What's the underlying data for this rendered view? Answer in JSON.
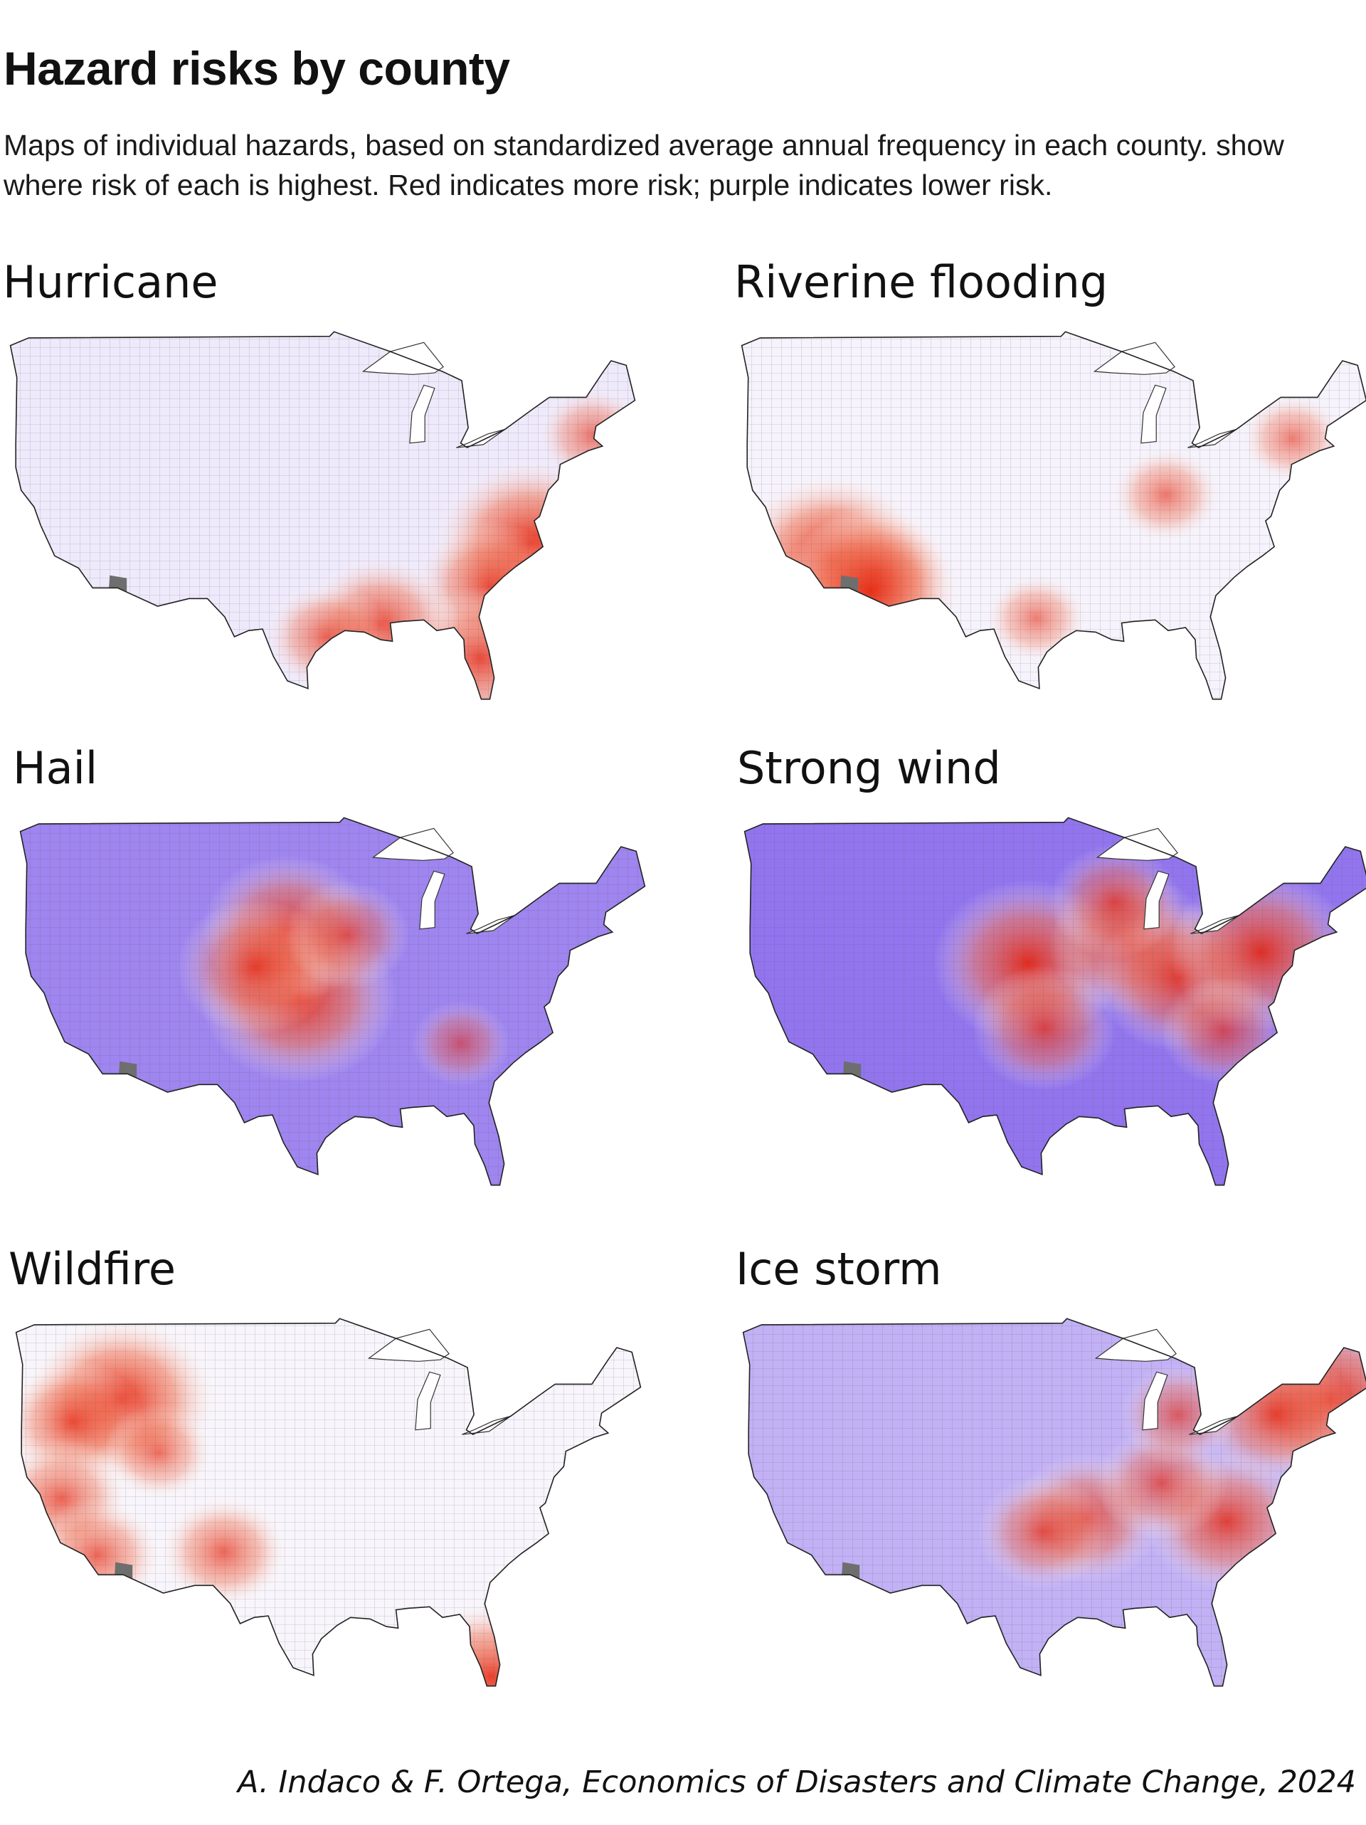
{
  "title": "Hazard risks by county",
  "subtitle": "Maps of individual hazards, based on standardized average annual frequency in each county. show where risk of each is highest. Red indicates more risk; purple indicates lower risk.",
  "credit": "A. Indaco & F. Ortega, Economics of Disasters and Climate Change, 2024",
  "legend": {
    "high_risk_color": "#e8260f",
    "low_risk_color": "#9b7cf0",
    "no_data_color": "#6e6e6e"
  },
  "panels": [
    {
      "label": "Hurricane",
      "base": "#efeafb",
      "hotspots": [
        {
          "region": "North Carolina coast",
          "lon": -76.6,
          "lat": 35.4,
          "intensity": 1.0
        },
        {
          "region": "Southeast Atlantic coast",
          "lon": -80.4,
          "lat": 32.6,
          "intensity": 0.65
        },
        {
          "region": "Florida peninsula",
          "lon": -81.3,
          "lat": 27.9,
          "intensity": 0.75
        },
        {
          "region": "Gulf coast Louisiana",
          "lon": -90.5,
          "lat": 30.1,
          "intensity": 0.7
        },
        {
          "region": "Gulf coast Texas",
          "lon": -95.5,
          "lat": 29.3,
          "intensity": 0.45
        },
        {
          "region": "New England coast",
          "lon": -70.9,
          "lat": 42.5,
          "intensity": 0.35
        }
      ]
    },
    {
      "label": "Riverine flooding",
      "base": "#f6f3fc",
      "hotspots": [
        {
          "region": "Southern California",
          "lon": -116.5,
          "lat": 34.5,
          "intensity": 1.0
        },
        {
          "region": "Arizona",
          "lon": -112.5,
          "lat": 33.5,
          "intensity": 0.7
        },
        {
          "region": "Southern Arizona border",
          "lon": -112.8,
          "lat": 32.3,
          "intensity": 0.9
        },
        {
          "region": "Ohio River valley",
          "lon": -85.5,
          "lat": 38.6,
          "intensity": 0.35
        },
        {
          "region": "Central Texas",
          "lon": -97.5,
          "lat": 30.5,
          "intensity": 0.3
        },
        {
          "region": "Northeast",
          "lon": -73.8,
          "lat": 42.3,
          "intensity": 0.3
        }
      ]
    },
    {
      "label": "Hail",
      "base": "#9f85ef",
      "hotspots": [
        {
          "region": "Kansas / Oklahoma",
          "lon": -99.0,
          "lat": 37.5,
          "intensity": 1.0
        },
        {
          "region": "Nebraska / South Dakota",
          "lon": -100.0,
          "lat": 42.0,
          "intensity": 0.8
        },
        {
          "region": "Eastern Colorado",
          "lon": -103.0,
          "lat": 39.5,
          "intensity": 0.7
        },
        {
          "region": "Iowa",
          "lon": -94.5,
          "lat": 41.6,
          "intensity": 0.45
        },
        {
          "region": "Southeast",
          "lon": -84.0,
          "lat": 34.5,
          "intensity": 0.25
        }
      ]
    },
    {
      "label": "Strong wind",
      "base": "#9275ee",
      "hotspots": [
        {
          "region": "Kansas / Nebraska",
          "lon": -98.5,
          "lat": 39.8,
          "intensity": 0.95
        },
        {
          "region": "Illinois",
          "lon": -89.0,
          "lat": 41.0,
          "intensity": 0.75
        },
        {
          "region": "Ohio / Kentucky",
          "lon": -84.5,
          "lat": 38.8,
          "intensity": 0.8
        },
        {
          "region": "Pennsylvania",
          "lon": -77.0,
          "lat": 40.5,
          "intensity": 0.9
        },
        {
          "region": "Oklahoma",
          "lon": -97.0,
          "lat": 35.5,
          "intensity": 0.6
        },
        {
          "region": "Carolinas",
          "lon": -80.5,
          "lat": 35.3,
          "intensity": 0.45
        },
        {
          "region": "Wisconsin",
          "lon": -90.5,
          "lat": 43.8,
          "intensity": 0.5
        }
      ]
    },
    {
      "label": "Wildfire",
      "base": "#f8f6fc",
      "hotspots": [
        {
          "region": "Idaho",
          "lon": -115.0,
          "lat": 44.0,
          "intensity": 1.0
        },
        {
          "region": "Oregon / Nevada",
          "lon": -119.5,
          "lat": 42.5,
          "intensity": 0.6
        },
        {
          "region": "California",
          "lon": -120.5,
          "lat": 37.5,
          "intensity": 0.55
        },
        {
          "region": "Southern California",
          "lon": -117.2,
          "lat": 33.8,
          "intensity": 0.5
        },
        {
          "region": "New Mexico",
          "lon": -105.5,
          "lat": 34.0,
          "intensity": 0.5
        },
        {
          "region": "South Florida",
          "lon": -80.8,
          "lat": 25.8,
          "intensity": 0.85
        },
        {
          "region": "Utah",
          "lon": -111.5,
          "lat": 40.5,
          "intensity": 0.35
        }
      ]
    },
    {
      "label": "Ice storm",
      "base": "#c2b1f5",
      "hotspots": [
        {
          "region": "Maine / New Hampshire",
          "lon": -70.5,
          "lat": 44.0,
          "intensity": 1.0
        },
        {
          "region": "Upstate New York",
          "lon": -75.5,
          "lat": 43.0,
          "intensity": 0.7
        },
        {
          "region": "North Carolina piedmont",
          "lon": -80.0,
          "lat": 36.0,
          "intensity": 0.75
        },
        {
          "region": "Arkansas / Missouri",
          "lon": -93.0,
          "lat": 36.2,
          "intensity": 0.65
        },
        {
          "region": "Oklahoma",
          "lon": -97.0,
          "lat": 35.3,
          "intensity": 0.5
        },
        {
          "region": "Ohio valley",
          "lon": -86.0,
          "lat": 38.5,
          "intensity": 0.5
        },
        {
          "region": "Michigan",
          "lon": -84.5,
          "lat": 43.0,
          "intensity": 0.4
        }
      ]
    }
  ]
}
